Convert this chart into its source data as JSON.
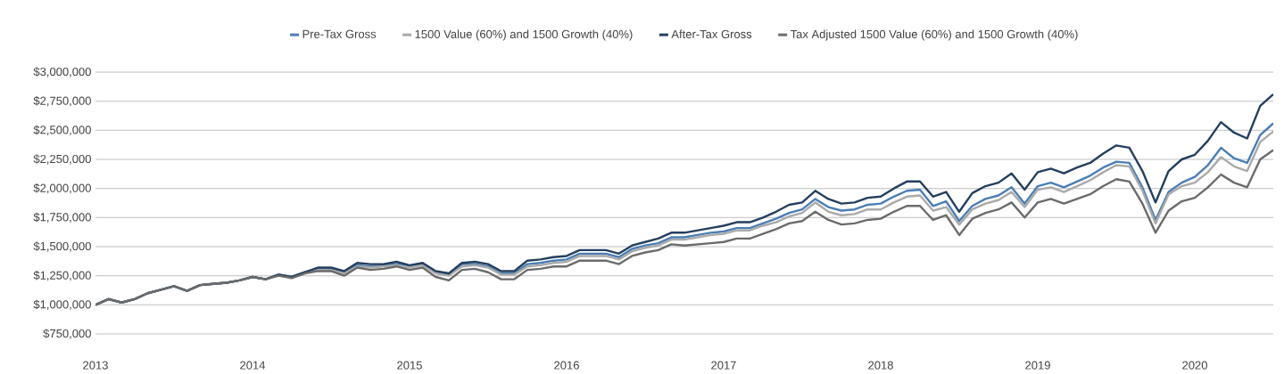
{
  "chart_data": {
    "type": "line",
    "x": [
      "2013-01",
      "2013-02",
      "2013-03",
      "2013-04",
      "2013-05",
      "2013-06",
      "2013-07",
      "2013-08",
      "2013-09",
      "2013-10",
      "2013-11",
      "2013-12",
      "2014-01",
      "2014-02",
      "2014-03",
      "2014-04",
      "2014-05",
      "2014-06",
      "2014-07",
      "2014-08",
      "2014-09",
      "2014-10",
      "2014-11",
      "2014-12",
      "2015-01",
      "2015-02",
      "2015-03",
      "2015-04",
      "2015-05",
      "2015-06",
      "2015-07",
      "2015-08",
      "2015-09",
      "2015-10",
      "2015-11",
      "2015-12",
      "2016-01",
      "2016-02",
      "2016-03",
      "2016-04",
      "2016-05",
      "2016-06",
      "2016-07",
      "2016-08",
      "2016-09",
      "2016-10",
      "2016-11",
      "2016-12",
      "2017-01",
      "2017-02",
      "2017-03",
      "2017-04",
      "2017-05",
      "2017-06",
      "2017-07",
      "2017-08",
      "2017-09",
      "2017-10",
      "2017-11",
      "2017-12",
      "2018-01",
      "2018-02",
      "2018-03",
      "2018-04",
      "2018-05",
      "2018-06",
      "2018-07",
      "2018-08",
      "2018-09",
      "2018-10",
      "2018-11",
      "2018-12",
      "2019-01",
      "2019-02",
      "2019-03",
      "2019-04",
      "2019-05",
      "2019-06",
      "2019-07",
      "2019-08",
      "2019-09",
      "2019-10",
      "2019-11",
      "2019-12",
      "2020-01",
      "2020-02",
      "2020-03",
      "2020-04",
      "2020-05",
      "2020-06",
      "2020-07"
    ],
    "series": [
      {
        "name": "Pre-Tax Gross",
        "color": "#4a7eb5",
        "values": [
          1000000,
          1050000,
          1020000,
          1050000,
          1100000,
          1130000,
          1160000,
          1120000,
          1170000,
          1180000,
          1190000,
          1210000,
          1240000,
          1220000,
          1260000,
          1240000,
          1280000,
          1310000,
          1310000,
          1280000,
          1340000,
          1330000,
          1340000,
          1350000,
          1330000,
          1350000,
          1280000,
          1260000,
          1350000,
          1350000,
          1330000,
          1270000,
          1270000,
          1350000,
          1360000,
          1380000,
          1390000,
          1440000,
          1440000,
          1440000,
          1410000,
          1480000,
          1510000,
          1530000,
          1580000,
          1580000,
          1600000,
          1620000,
          1630000,
          1660000,
          1660000,
          1700000,
          1740000,
          1790000,
          1820000,
          1910000,
          1840000,
          1810000,
          1820000,
          1860000,
          1870000,
          1930000,
          1980000,
          1990000,
          1850000,
          1890000,
          1720000,
          1850000,
          1910000,
          1940000,
          2010000,
          1870000,
          2020000,
          2050000,
          2010000,
          2060000,
          2110000,
          2180000,
          2230000,
          2220000,
          2010000,
          1730000,
          1970000,
          2050000,
          2100000,
          2200000,
          2350000,
          2260000,
          2220000,
          2460000,
          2560000
        ]
      },
      {
        "name": "1500 Value (60%) and 1500 Growth (40%)",
        "color": "#aaaaaa",
        "values": [
          1000000,
          1050000,
          1020000,
          1050000,
          1100000,
          1130000,
          1160000,
          1120000,
          1170000,
          1180000,
          1190000,
          1210000,
          1240000,
          1220000,
          1260000,
          1240000,
          1280000,
          1300000,
          1300000,
          1270000,
          1330000,
          1320000,
          1330000,
          1340000,
          1320000,
          1340000,
          1270000,
          1250000,
          1330000,
          1340000,
          1320000,
          1260000,
          1260000,
          1330000,
          1340000,
          1360000,
          1370000,
          1420000,
          1420000,
          1420000,
          1390000,
          1460000,
          1490000,
          1510000,
          1560000,
          1560000,
          1580000,
          1600000,
          1610000,
          1640000,
          1640000,
          1680000,
          1710000,
          1760000,
          1790000,
          1880000,
          1800000,
          1770000,
          1780000,
          1820000,
          1820000,
          1880000,
          1930000,
          1940000,
          1810000,
          1840000,
          1690000,
          1820000,
          1870000,
          1900000,
          1970000,
          1840000,
          1990000,
          2010000,
          1970000,
          2020000,
          2070000,
          2140000,
          2200000,
          2190000,
          1980000,
          1700000,
          1950000,
          2020000,
          2050000,
          2140000,
          2270000,
          2190000,
          2150000,
          2400000,
          2490000
        ]
      },
      {
        "name": "After-Tax Gross",
        "color": "#243f5e",
        "values": [
          1000000,
          1050000,
          1020000,
          1050000,
          1100000,
          1130000,
          1160000,
          1120000,
          1170000,
          1180000,
          1190000,
          1210000,
          1240000,
          1220000,
          1260000,
          1240000,
          1280000,
          1320000,
          1320000,
          1290000,
          1360000,
          1350000,
          1350000,
          1370000,
          1340000,
          1360000,
          1290000,
          1270000,
          1360000,
          1370000,
          1350000,
          1290000,
          1290000,
          1380000,
          1390000,
          1410000,
          1420000,
          1470000,
          1470000,
          1470000,
          1440000,
          1510000,
          1540000,
          1570000,
          1620000,
          1620000,
          1640000,
          1660000,
          1680000,
          1710000,
          1710000,
          1750000,
          1800000,
          1860000,
          1880000,
          1980000,
          1910000,
          1870000,
          1880000,
          1920000,
          1930000,
          2000000,
          2060000,
          2060000,
          1930000,
          1970000,
          1800000,
          1960000,
          2020000,
          2050000,
          2130000,
          1990000,
          2140000,
          2170000,
          2130000,
          2180000,
          2220000,
          2300000,
          2370000,
          2350000,
          2150000,
          1880000,
          2150000,
          2250000,
          2290000,
          2410000,
          2570000,
          2480000,
          2430000,
          2710000,
          2810000
        ]
      },
      {
        "name": "Tax Adjusted 1500 Value (60%) and 1500 Growth (40%)",
        "color": "#6b6b6b",
        "values": [
          1000000,
          1050000,
          1020000,
          1050000,
          1100000,
          1130000,
          1160000,
          1120000,
          1170000,
          1180000,
          1190000,
          1210000,
          1240000,
          1220000,
          1250000,
          1230000,
          1270000,
          1290000,
          1290000,
          1250000,
          1320000,
          1300000,
          1310000,
          1330000,
          1300000,
          1320000,
          1240000,
          1210000,
          1300000,
          1310000,
          1280000,
          1220000,
          1220000,
          1300000,
          1310000,
          1330000,
          1330000,
          1380000,
          1380000,
          1380000,
          1350000,
          1420000,
          1450000,
          1470000,
          1520000,
          1510000,
          1520000,
          1530000,
          1540000,
          1570000,
          1570000,
          1610000,
          1650000,
          1700000,
          1720000,
          1800000,
          1730000,
          1690000,
          1700000,
          1730000,
          1740000,
          1800000,
          1850000,
          1850000,
          1730000,
          1770000,
          1600000,
          1740000,
          1790000,
          1820000,
          1880000,
          1750000,
          1880000,
          1910000,
          1870000,
          1910000,
          1950000,
          2020000,
          2080000,
          2060000,
          1870000,
          1620000,
          1810000,
          1890000,
          1920000,
          2010000,
          2120000,
          2050000,
          2010000,
          2250000,
          2330000
        ]
      }
    ],
    "xlim": [
      "2013-01",
      "2020-07"
    ],
    "xticks": [
      {
        "value": "2013",
        "label": "2013"
      },
      {
        "value": "2014",
        "label": "2014"
      },
      {
        "value": "2015",
        "label": "2015"
      },
      {
        "value": "2016",
        "label": "2016"
      },
      {
        "value": "2017",
        "label": "2017"
      },
      {
        "value": "2018",
        "label": "2018"
      },
      {
        "value": "2019",
        "label": "2019"
      },
      {
        "value": "2020",
        "label": "2020"
      }
    ],
    "ylim": [
      750000,
      3000000
    ],
    "yticks": [
      {
        "value": 750000,
        "label": "$750,000"
      },
      {
        "value": 1000000,
        "label": "$1,000,000"
      },
      {
        "value": 1250000,
        "label": "$1,250,000"
      },
      {
        "value": 1500000,
        "label": "$1,500,000"
      },
      {
        "value": 1750000,
        "label": "$1,750,000"
      },
      {
        "value": 2000000,
        "label": "$2,000,000"
      },
      {
        "value": 2250000,
        "label": "$2,250,000"
      },
      {
        "value": 2500000,
        "label": "$2,500,000"
      },
      {
        "value": 2750000,
        "label": "$2,750,000"
      },
      {
        "value": 3000000,
        "label": "$3,000,000"
      }
    ],
    "grid": "y",
    "legend": "top"
  }
}
